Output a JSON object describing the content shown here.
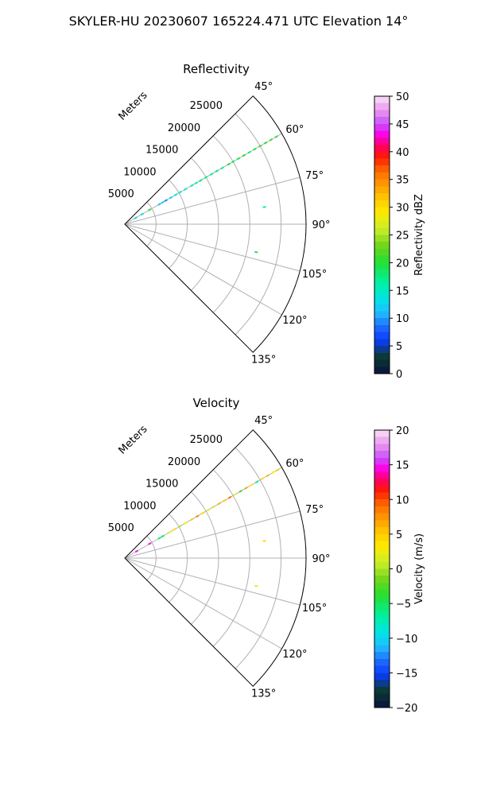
{
  "figure": {
    "suptitle": "SKYLER-HU  20230607  165224.471 UTC Elevation 14°"
  },
  "chart_data": [
    {
      "type": "scatter",
      "title": "Reflectivity",
      "projection": "polar-sector",
      "theta_range_deg": [
        45,
        135
      ],
      "theta_ticks": [
        "45°",
        "60°",
        "75°",
        "90°",
        "105°",
        "120°",
        "135°"
      ],
      "r_ticks": [
        "5000",
        "10000",
        "15000",
        "20000",
        "25000"
      ],
      "r_tick_values": [
        5000,
        10000,
        15000,
        20000,
        25000
      ],
      "rmax": 29000,
      "r_axis_label": "Meters",
      "grid": true,
      "colorbar": {
        "label": "Reflectivity dBZ",
        "min": 0,
        "max": 50,
        "ticks": [
          "0",
          "5",
          "10",
          "15",
          "20",
          "25",
          "30",
          "35",
          "40",
          "45",
          "50"
        ]
      },
      "series": [
        {
          "points": [
            {
              "az": 60,
              "r": 2000,
              "value": 13
            },
            {
              "az": 60,
              "r": 3200,
              "value": 14
            },
            {
              "az": 60,
              "r": 4600,
              "value": 20
            },
            {
              "az": 60,
              "r": 6400,
              "value": 11
            },
            {
              "az": 60,
              "r": 7000,
              "value": 12
            },
            {
              "az": 60,
              "r": 7600,
              "value": 9
            },
            {
              "az": 60,
              "r": 8500,
              "value": 12
            },
            {
              "az": 60,
              "r": 9400,
              "value": 14
            },
            {
              "az": 60,
              "r": 10200,
              "value": 15
            },
            {
              "az": 60,
              "r": 11200,
              "value": 14
            },
            {
              "az": 60,
              "r": 12400,
              "value": 16
            },
            {
              "az": 60,
              "r": 13200,
              "value": 15
            },
            {
              "az": 60,
              "r": 14000,
              "value": 18
            },
            {
              "az": 60,
              "r": 15000,
              "value": 17
            },
            {
              "az": 60,
              "r": 16000,
              "value": 16
            },
            {
              "az": 60,
              "r": 17000,
              "value": 18
            },
            {
              "az": 60,
              "r": 18000,
              "value": 17
            },
            {
              "az": 60,
              "r": 19200,
              "value": 20
            },
            {
              "az": 60,
              "r": 20000,
              "value": 18
            },
            {
              "az": 60,
              "r": 21000,
              "value": 19
            },
            {
              "az": 60,
              "r": 22000,
              "value": 20
            },
            {
              "az": 60,
              "r": 23000,
              "value": 18
            },
            {
              "az": 60,
              "r": 24000,
              "value": 19
            },
            {
              "az": 60,
              "r": 25000,
              "value": 21
            },
            {
              "az": 60,
              "r": 26000,
              "value": 20
            },
            {
              "az": 60,
              "r": 27000,
              "value": 21
            },
            {
              "az": 60,
              "r": 28000,
              "value": 20
            },
            {
              "az": 83,
              "r": 22500,
              "value": 16
            },
            {
              "az": 102,
              "r": 21500,
              "value": 19
            }
          ]
        }
      ]
    },
    {
      "type": "scatter",
      "title": "Velocity",
      "projection": "polar-sector",
      "theta_range_deg": [
        45,
        135
      ],
      "theta_ticks": [
        "45°",
        "60°",
        "75°",
        "90°",
        "105°",
        "120°",
        "135°"
      ],
      "r_ticks": [
        "5000",
        "10000",
        "15000",
        "20000",
        "25000"
      ],
      "r_tick_values": [
        5000,
        10000,
        15000,
        20000,
        25000
      ],
      "rmax": 29000,
      "r_axis_label": "Meters",
      "grid": true,
      "colorbar": {
        "label": "Velocity (m/s)",
        "min": -20,
        "max": 20,
        "ticks": [
          "−20",
          "−15",
          "−10",
          "−5",
          "0",
          "5",
          "10",
          "15",
          "20"
        ]
      },
      "series": [
        {
          "points": [
            {
              "az": 60,
              "r": 2200,
              "value": 15
            },
            {
              "az": 60,
              "r": 4600,
              "value": 15
            },
            {
              "az": 60,
              "r": 6400,
              "value": -6
            },
            {
              "az": 60,
              "r": 7000,
              "value": -5
            },
            {
              "az": 60,
              "r": 8200,
              "value": 2
            },
            {
              "az": 60,
              "r": 9200,
              "value": 4
            },
            {
              "az": 60,
              "r": 10200,
              "value": 0
            },
            {
              "az": 60,
              "r": 11200,
              "value": 3
            },
            {
              "az": 60,
              "r": 12400,
              "value": 5
            },
            {
              "az": 60,
              "r": 13400,
              "value": 8
            },
            {
              "az": 60,
              "r": 14400,
              "value": 4
            },
            {
              "az": 60,
              "r": 15400,
              "value": 3
            },
            {
              "az": 60,
              "r": 16400,
              "value": 1
            },
            {
              "az": 60,
              "r": 17400,
              "value": 6
            },
            {
              "az": 60,
              "r": 18400,
              "value": 5
            },
            {
              "az": 60,
              "r": 19400,
              "value": 9
            },
            {
              "az": 60,
              "r": 20400,
              "value": 2
            },
            {
              "az": 60,
              "r": 21400,
              "value": -3
            },
            {
              "az": 60,
              "r": 22400,
              "value": 7
            },
            {
              "az": 60,
              "r": 23400,
              "value": 3
            },
            {
              "az": 60,
              "r": 24400,
              "value": -8
            },
            {
              "az": 60,
              "r": 25400,
              "value": 4
            },
            {
              "az": 60,
              "r": 26400,
              "value": 6
            },
            {
              "az": 60,
              "r": 27400,
              "value": 3
            },
            {
              "az": 60,
              "r": 28200,
              "value": 5
            },
            {
              "az": 83,
              "r": 22500,
              "value": 4
            },
            {
              "az": 102,
              "r": 21500,
              "value": 2
            }
          ]
        }
      ]
    }
  ]
}
